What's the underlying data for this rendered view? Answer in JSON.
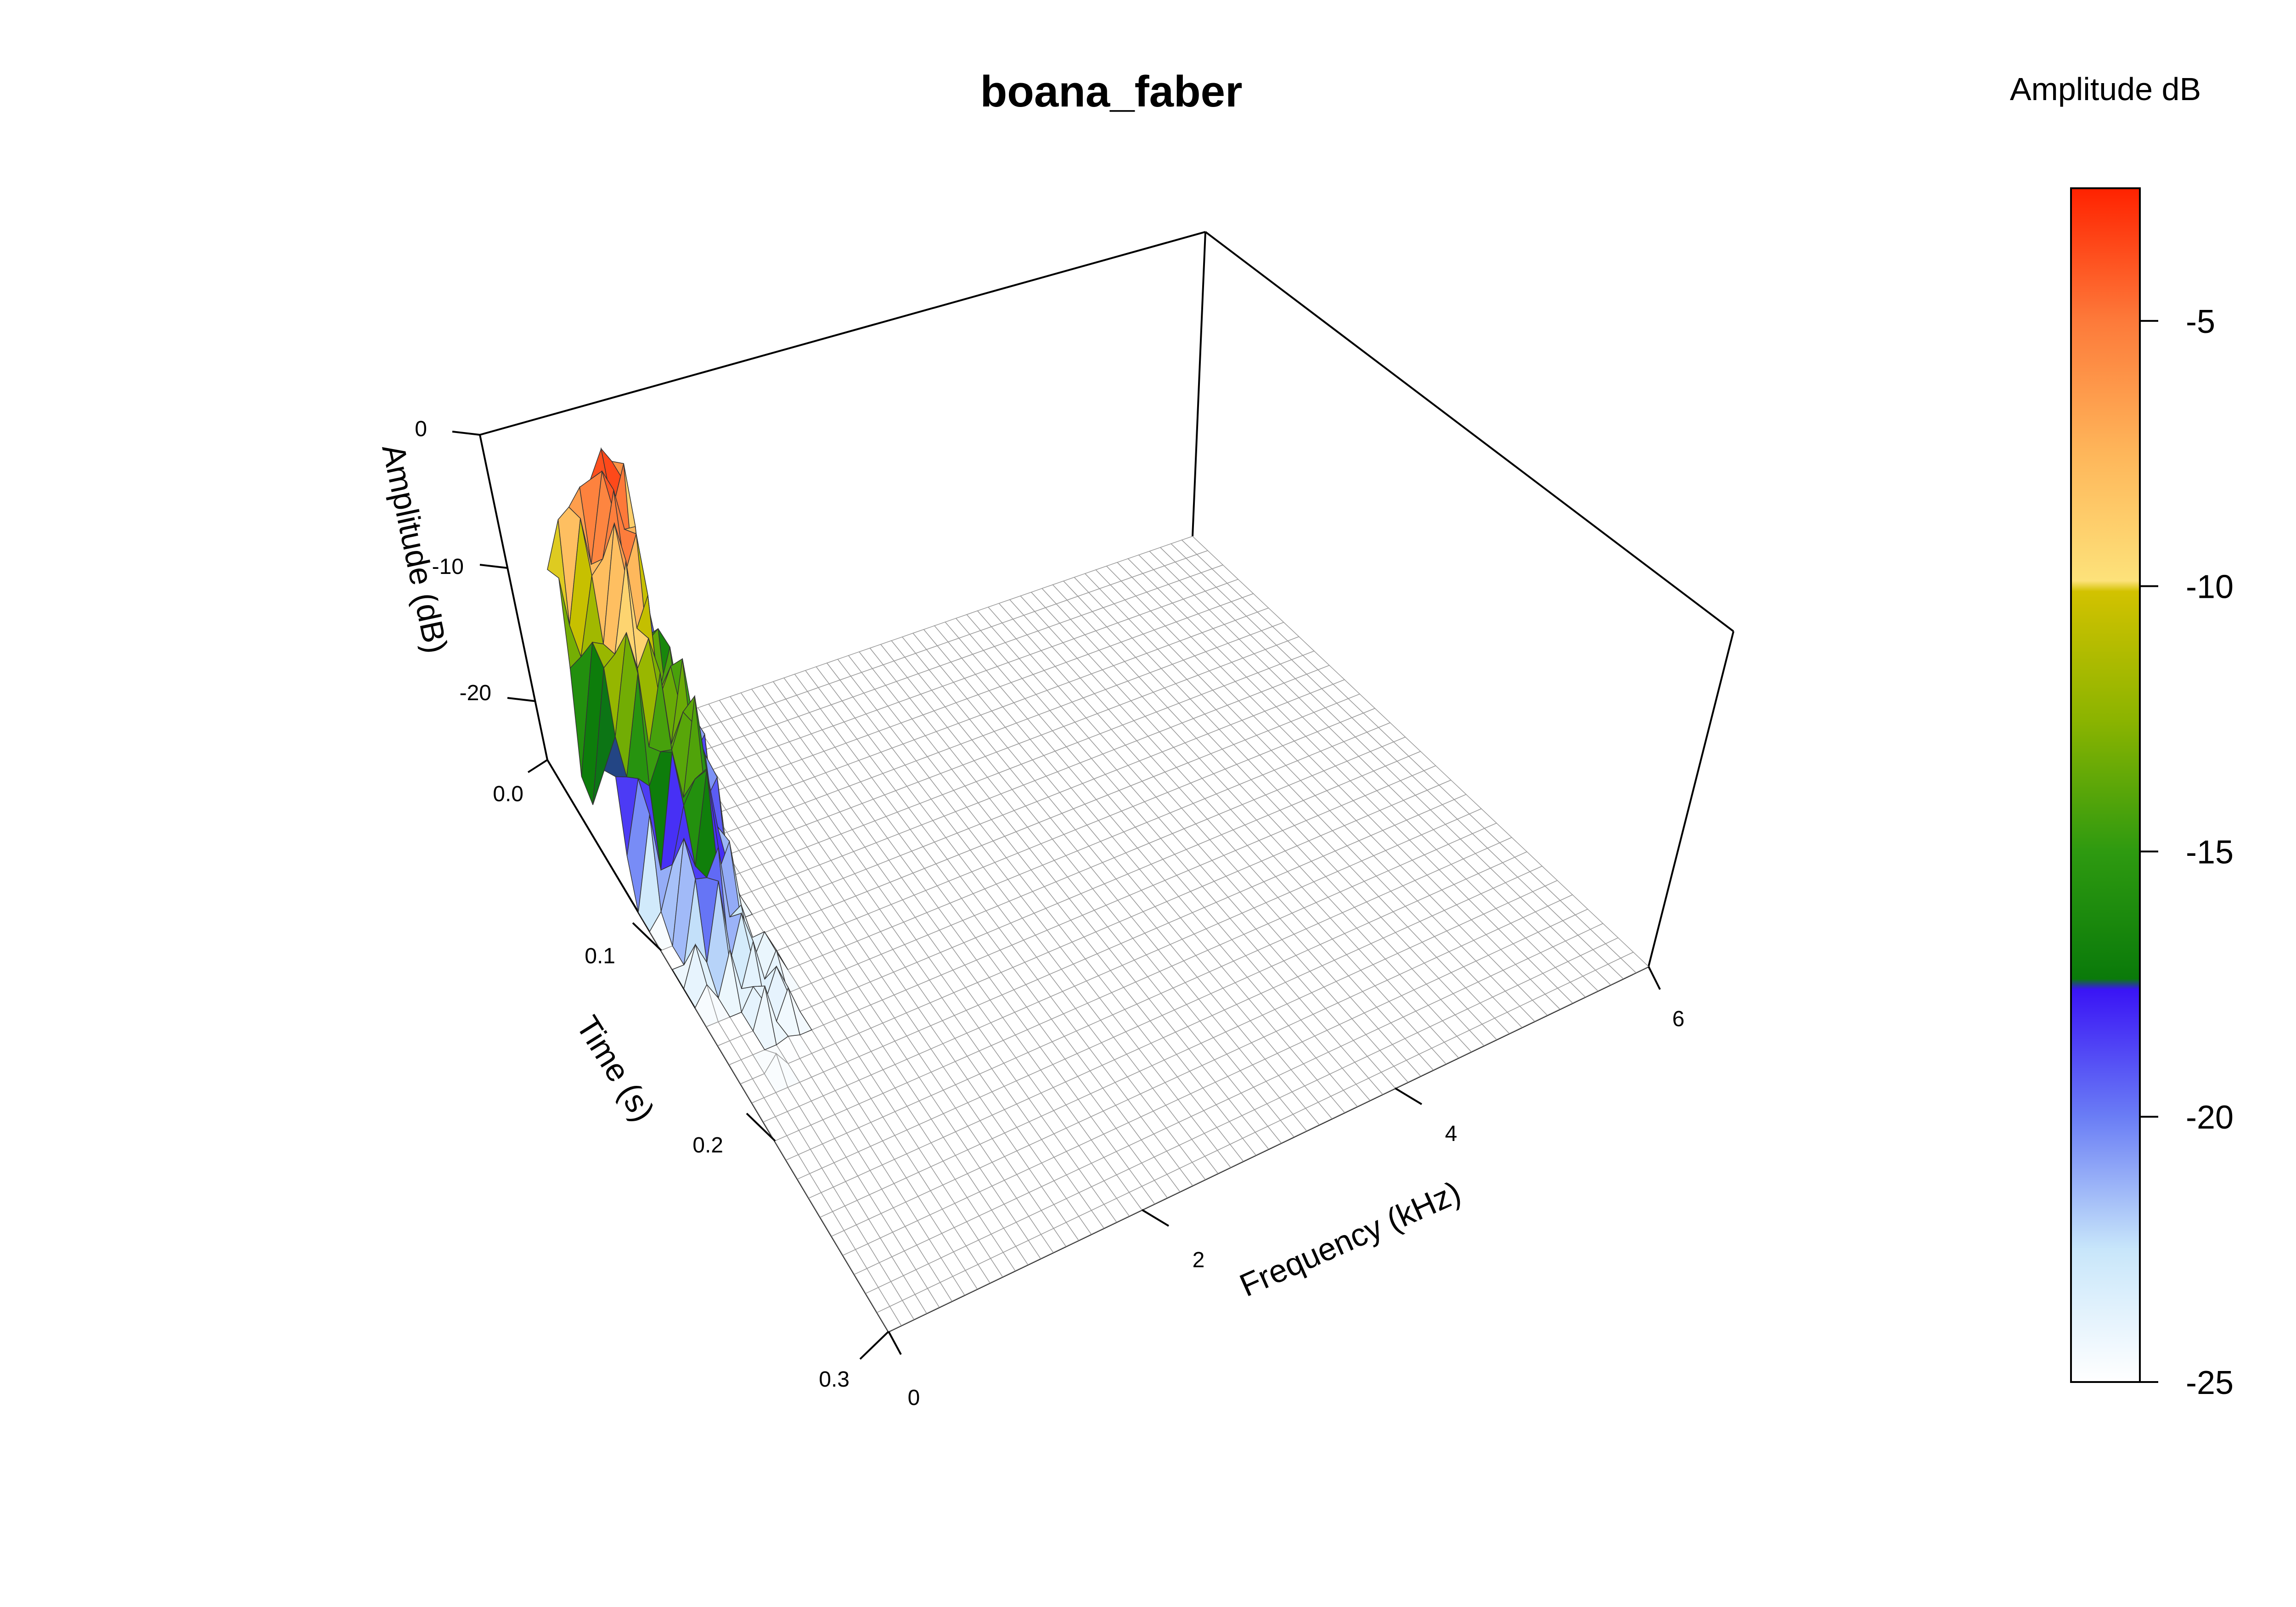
{
  "chart_data": {
    "type": "surface3d",
    "title": "boana_faber",
    "axes": {
      "frequency": {
        "label": "Frequency (kHz)",
        "range": [
          0,
          6
        ],
        "ticks": [
          "0",
          "2",
          "4",
          "6"
        ]
      },
      "time": {
        "label": "Time (s)",
        "range": [
          0.0,
          0.3
        ],
        "ticks": [
          "0.0",
          "0.1",
          "0.2",
          "0.3"
        ]
      },
      "amplitude": {
        "label": "Amplitude (dB)",
        "range": [
          -25,
          0
        ],
        "ticks": [
          "0",
          "-10",
          "-20"
        ]
      }
    },
    "colorbar": {
      "title": "Amplitude dB",
      "range": [
        -25,
        -2.5
      ],
      "ticks": [
        "-5",
        "-10",
        "-15",
        "-20",
        "-25"
      ],
      "stops": [
        {
          "value": -25,
          "color": "#ffffff"
        },
        {
          "value": -22.5,
          "color": "#c8e6fa"
        },
        {
          "value": -20,
          "color": "#6a7df5"
        },
        {
          "value": -17.6,
          "color": "#3a14f5"
        },
        {
          "value": -17.4,
          "color": "#0a7a0a"
        },
        {
          "value": -15,
          "color": "#2e9a10"
        },
        {
          "value": -12.5,
          "color": "#8cb400"
        },
        {
          "value": -10.1,
          "color": "#d2c200"
        },
        {
          "value": -9.9,
          "color": "#fde27a"
        },
        {
          "value": -7.5,
          "color": "#feb65a"
        },
        {
          "value": -5,
          "color": "#fd7a3a"
        },
        {
          "value": -2.5,
          "color": "#ff2200"
        }
      ]
    },
    "surface": {
      "floor_db": -25,
      "energy_freq_khz": [
        0.0,
        0.9
      ],
      "peak_freq_khz": 0.4,
      "energy_time_s": [
        0.0,
        0.2
      ],
      "peak_db": -2.5
    }
  }
}
